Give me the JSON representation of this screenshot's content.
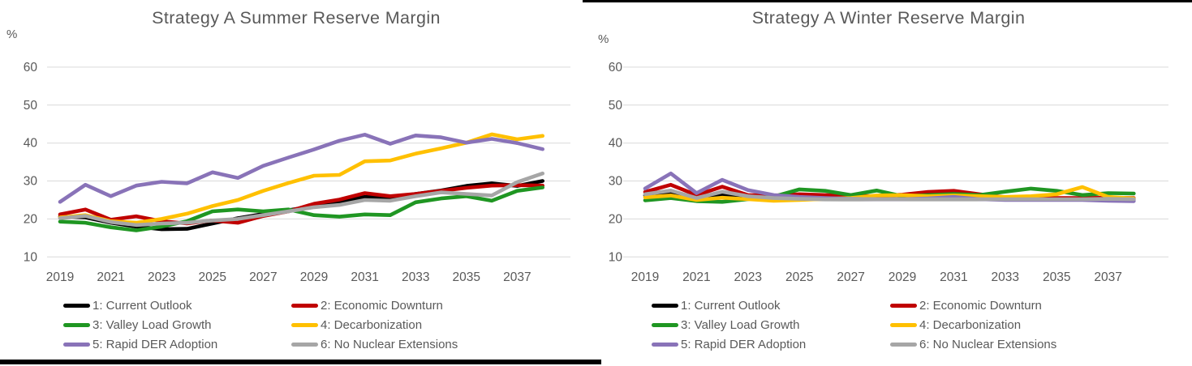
{
  "colors": {
    "grid": "#D9D9D9",
    "axis_text": "#595959",
    "title_text": "#595959",
    "border_bar": "#000000"
  },
  "chart_data": [
    {
      "type": "line",
      "title": "Strategy A Summer Reserve Margin",
      "ylabel": "%",
      "xlabel": "",
      "grid": "horizontal",
      "legend_position": "bottom",
      "ylim": [
        10,
        60
      ],
      "y_tick_labels": [
        60,
        50,
        40,
        30,
        20,
        10
      ],
      "x": [
        2019,
        2020,
        2021,
        2022,
        2023,
        2024,
        2025,
        2026,
        2027,
        2028,
        2029,
        2030,
        2031,
        2032,
        2033,
        2034,
        2035,
        2036,
        2037,
        2038
      ],
      "x_tick_labels": [
        "2019",
        "2021",
        "2023",
        "2025",
        "2027",
        "2029",
        "2031",
        "2033",
        "2035",
        "2037"
      ],
      "series": [
        {
          "name": "1: Current Outlook",
          "color": "#000000",
          "values": [
            20.6,
            20.4,
            19.0,
            18.0,
            17.3,
            17.4,
            18.8,
            20.2,
            21.3,
            22.3,
            23.4,
            24.6,
            25.8,
            25.6,
            26.6,
            27.5,
            28.7,
            29.4,
            28.7,
            30.0
          ]
        },
        {
          "name": "2: Economic Downturn",
          "color": "#C00000",
          "values": [
            21.2,
            22.5,
            19.8,
            20.7,
            19.4,
            18.8,
            19.6,
            19.0,
            20.8,
            22.0,
            24.0,
            25.1,
            26.8,
            26.0,
            26.6,
            27.4,
            28.2,
            28.8,
            28.9,
            28.8
          ]
        },
        {
          "name": "3: Valley Load Growth",
          "color": "#1F9622",
          "values": [
            19.3,
            19.0,
            17.8,
            17.0,
            18.0,
            19.4,
            22.0,
            22.5,
            22.0,
            22.5,
            21.0,
            20.6,
            21.2,
            21.0,
            24.4,
            25.4,
            26.0,
            24.8,
            27.4,
            28.3
          ]
        },
        {
          "name": "4: Decarbonization",
          "color": "#FFC000",
          "values": [
            20.4,
            21.0,
            19.4,
            19.0,
            20.0,
            21.4,
            23.4,
            25.0,
            27.4,
            29.5,
            31.4,
            31.6,
            35.2,
            35.4,
            37.2,
            38.6,
            40.1,
            42.3,
            41.0,
            41.9
          ]
        },
        {
          "name": "5: Rapid DER Adoption",
          "color": "#8973B8",
          "values": [
            24.5,
            29.0,
            26.0,
            28.8,
            29.8,
            29.4,
            32.3,
            30.8,
            34.0,
            36.2,
            38.3,
            40.6,
            42.2,
            39.8,
            42.0,
            41.5,
            40.1,
            41.1,
            40.0,
            38.4
          ]
        },
        {
          "name": "6: No Nuclear Extensions",
          "color": "#A6A6A6",
          "values": [
            20.2,
            20.8,
            19.2,
            18.4,
            18.8,
            19.0,
            19.6,
            20.0,
            21.0,
            22.0,
            23.1,
            23.7,
            25.0,
            24.8,
            26.0,
            27.0,
            26.6,
            26.2,
            29.7,
            32.0
          ]
        }
      ]
    },
    {
      "type": "line",
      "title": "Strategy A Winter Reserve Margin",
      "ylabel": "%",
      "xlabel": "",
      "grid": "horizontal",
      "legend_position": "bottom",
      "ylim": [
        10,
        60
      ],
      "y_tick_labels": [
        60,
        50,
        40,
        30,
        20,
        10
      ],
      "x": [
        2019,
        2020,
        2021,
        2022,
        2023,
        2024,
        2025,
        2026,
        2027,
        2028,
        2029,
        2030,
        2031,
        2032,
        2033,
        2034,
        2035,
        2036,
        2037,
        2038
      ],
      "x_tick_labels": [
        "2019",
        "2021",
        "2023",
        "2025",
        "2027",
        "2029",
        "2031",
        "2033",
        "2035",
        "2037"
      ],
      "series": [
        {
          "name": "1: Current Outlook",
          "color": "#000000",
          "values": [
            26.2,
            26.6,
            25.3,
            26.4,
            25.5,
            25.2,
            25.3,
            25.2,
            25.2,
            25.2,
            25.2,
            25.2,
            25.2,
            25.2,
            25.2,
            25.3,
            25.2,
            25.2,
            25.2,
            25.2
          ]
        },
        {
          "name": "2: Economic Downturn",
          "color": "#C00000",
          "values": [
            27.1,
            29.0,
            26.3,
            28.5,
            26.3,
            26.2,
            26.5,
            26.3,
            26.1,
            26.0,
            26.4,
            27.1,
            27.4,
            26.5,
            25.7,
            25.6,
            25.5,
            25.5,
            25.6,
            25.5
          ]
        },
        {
          "name": "3: Valley Load Growth",
          "color": "#1F9622",
          "values": [
            24.9,
            25.5,
            24.7,
            24.5,
            25.2,
            25.9,
            27.8,
            27.4,
            26.3,
            27.5,
            26.0,
            26.3,
            26.6,
            26.3,
            27.2,
            28.0,
            27.4,
            26.3,
            26.8,
            26.7
          ]
        },
        {
          "name": "4: Decarbonization",
          "color": "#FFC000",
          "values": [
            25.7,
            26.2,
            25.0,
            25.6,
            25.2,
            24.8,
            25.0,
            25.3,
            25.5,
            26.2,
            26.3,
            26.0,
            26.2,
            26.0,
            25.8,
            26.0,
            26.5,
            28.4,
            25.8,
            25.4
          ]
        },
        {
          "name": "5: Rapid DER Adoption",
          "color": "#8973B8",
          "values": [
            28.0,
            32.0,
            26.8,
            30.3,
            27.6,
            26.3,
            25.8,
            25.5,
            25.3,
            25.2,
            25.2,
            25.4,
            25.8,
            25.2,
            25.0,
            25.0,
            25.0,
            25.0,
            24.8,
            24.7
          ]
        },
        {
          "name": "6: No Nuclear Extensions",
          "color": "#A6A6A6",
          "values": [
            26.5,
            27.5,
            25.5,
            27.2,
            26.0,
            25.5,
            25.3,
            25.2,
            25.3,
            25.2,
            25.2,
            25.2,
            25.2,
            25.2,
            25.2,
            25.2,
            25.2,
            25.2,
            25.3,
            25.2
          ]
        }
      ]
    }
  ]
}
